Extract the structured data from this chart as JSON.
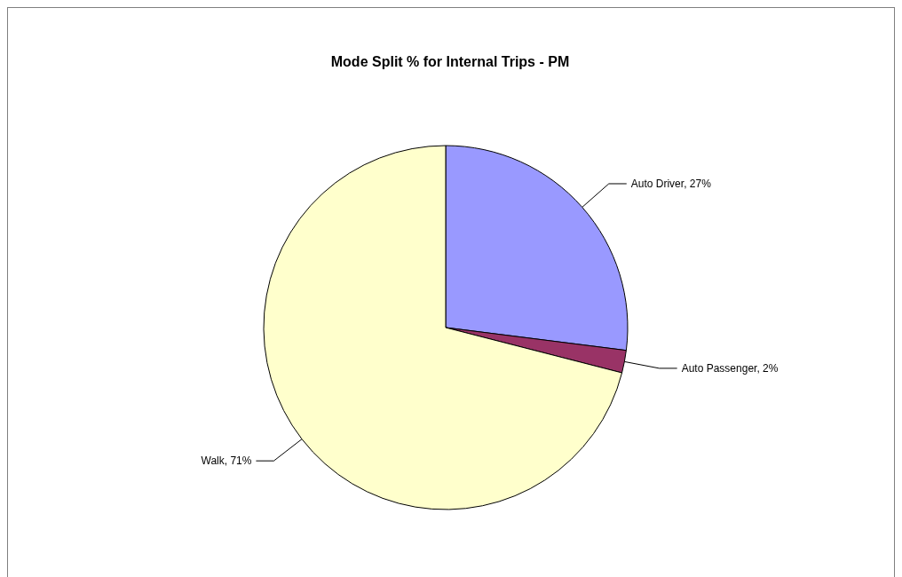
{
  "chart_data": {
    "type": "pie",
    "title": "Mode Split % for Internal Trips - PM",
    "categories": [
      "Auto Driver",
      "Auto Passenger",
      "Walk"
    ],
    "values": [
      27,
      2,
      71
    ],
    "colors": [
      "#9999ff",
      "#993366",
      "#ffffcc"
    ],
    "value_labels": [
      "27%",
      "2%",
      "71%"
    ],
    "legend": false
  }
}
